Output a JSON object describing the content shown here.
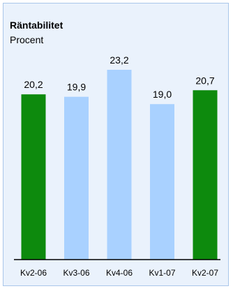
{
  "chart_data": {
    "type": "bar",
    "title": "Räntabilitet",
    "subtitle": "Procent",
    "categories": [
      "Kv2-06",
      "Kv3-06",
      "Kv4-06",
      "Kv1-07",
      "Kv2-07"
    ],
    "values": [
      20.2,
      19.9,
      23.2,
      19.0,
      20.7
    ],
    "value_labels": [
      "20,2",
      "19,9",
      "23,2",
      "19,0",
      "20,7"
    ],
    "bar_colors": [
      "#0d8a0d",
      "#a9d1ff",
      "#a9d1ff",
      "#a9d1ff",
      "#0d8a0d"
    ],
    "ylim": [
      0,
      23.2
    ],
    "grid": false,
    "legend": "none"
  },
  "colors": {
    "panel_background": "#eaf2fc",
    "panel_border": "#a9c6ea",
    "highlight_bar": "#0d8a0d",
    "regular_bar": "#a9d1ff",
    "axis": "#000000"
  }
}
